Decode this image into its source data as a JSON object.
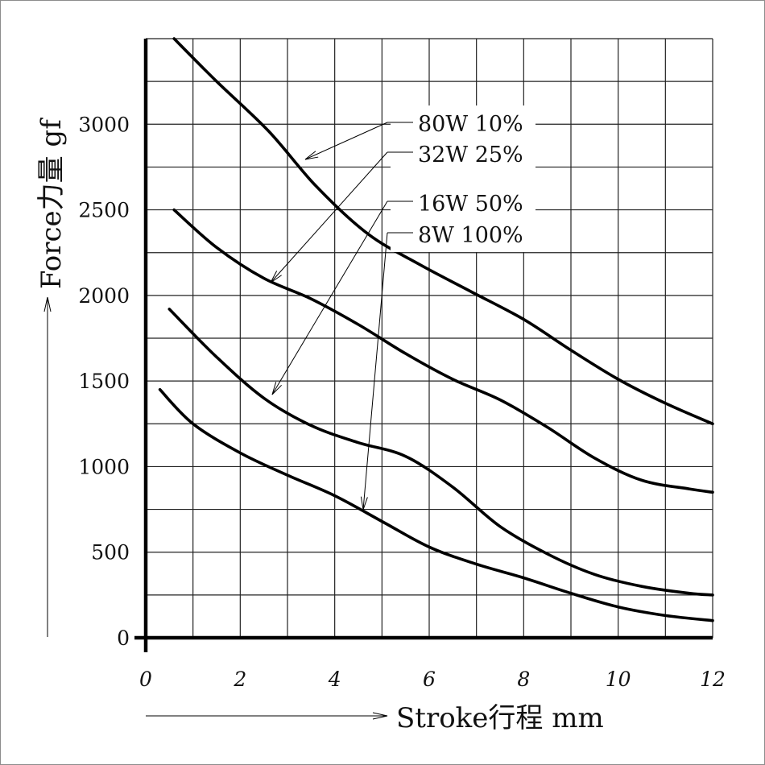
{
  "chart_data": {
    "type": "line",
    "xlabel": "Stroke行程 mm",
    "ylabel": "Force力量 gf",
    "xlim": [
      0,
      12
    ],
    "ylim": [
      0,
      3500
    ],
    "x_ticks": [
      "0",
      "2",
      "4",
      "6",
      "8",
      "10",
      "12"
    ],
    "y_ticks": [
      "0",
      "500",
      "1000",
      "1500",
      "2000",
      "2500",
      "3000"
    ],
    "grid": true,
    "series": [
      {
        "name": "80W 10%",
        "x": [
          0.6,
          1.5,
          2.6,
          3.6,
          4.7,
          5.8,
          6.9,
          8.0,
          9.0,
          10.0,
          11.0,
          12.0
        ],
        "y": [
          3500,
          3250,
          2960,
          2640,
          2360,
          2180,
          2020,
          1860,
          1680,
          1510,
          1370,
          1250
        ]
      },
      {
        "name": "32W 25%",
        "x": [
          0.6,
          1.5,
          2.5,
          3.5,
          4.5,
          5.5,
          6.5,
          7.5,
          8.5,
          9.5,
          10.5,
          11.5,
          12.0
        ],
        "y": [
          2500,
          2280,
          2100,
          1980,
          1830,
          1660,
          1510,
          1390,
          1230,
          1050,
          920,
          870,
          850
        ]
      },
      {
        "name": "16W 50%",
        "x": [
          0.5,
          1.5,
          2.5,
          3.5,
          4.5,
          5.5,
          6.5,
          7.5,
          8.5,
          9.5,
          10.5,
          11.5,
          12.0
        ],
        "y": [
          1920,
          1640,
          1400,
          1240,
          1140,
          1060,
          880,
          650,
          490,
          370,
          300,
          260,
          250
        ]
      },
      {
        "name": "8W 100%",
        "x": [
          0.3,
          1.0,
          2.0,
          3.0,
          4.0,
          5.0,
          6.0,
          7.0,
          8.0,
          9.0,
          10.0,
          11.0,
          12.0
        ],
        "y": [
          1450,
          1250,
          1080,
          950,
          830,
          680,
          530,
          430,
          350,
          260,
          180,
          130,
          100
        ]
      }
    ]
  }
}
